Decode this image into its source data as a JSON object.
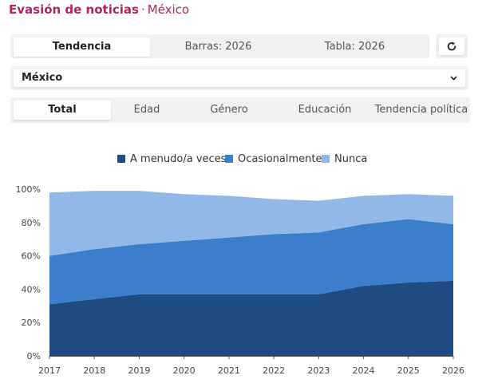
{
  "header": {
    "title": "Evasión de noticias",
    "separator": "·",
    "country": "México"
  },
  "view_tabs": [
    {
      "label": "Tendencia",
      "active": true
    },
    {
      "label": "Barras: 2026",
      "active": false
    },
    {
      "label": "Tabla: 2026",
      "active": false
    }
  ],
  "reset_icon": "reset-icon",
  "country_select": {
    "value": "México",
    "icon": "chevron-down-icon"
  },
  "filter_tabs": [
    {
      "label": "Total",
      "active": true
    },
    {
      "label": "Edad",
      "active": false
    },
    {
      "label": "Género",
      "active": false
    },
    {
      "label": "Educación",
      "active": false
    },
    {
      "label": "Tendencia política",
      "active": false
    }
  ],
  "colors": {
    "accent": "#b0245f",
    "series_dark": "#1e4b82",
    "series_mid": "#3b7fcc",
    "series_light": "#92b8e8"
  },
  "chart_data": {
    "type": "area",
    "stacked": true,
    "title": "",
    "xlabel": "",
    "ylabel": "",
    "x": [
      "2017",
      "2018",
      "2019",
      "2020",
      "2021",
      "2022",
      "2023",
      "2024",
      "2025",
      "2026"
    ],
    "ylim": [
      0,
      100
    ],
    "y_ticks": [
      "0%",
      "20%",
      "40%",
      "60%",
      "80%",
      "100%"
    ],
    "legend_position": "top-center",
    "grid": false,
    "series": [
      {
        "name": "A menudo/a veces",
        "color": "#1e4b82",
        "values": [
          31,
          34,
          37,
          37,
          37,
          37,
          37,
          42,
          44,
          45
        ]
      },
      {
        "name": "Ocasionalmente",
        "color": "#3b7fcc",
        "values": [
          29,
          30,
          30,
          32,
          34,
          36,
          37,
          37,
          38,
          34
        ]
      },
      {
        "name": "Nunca",
        "color": "#92b8e8",
        "values": [
          38,
          35,
          32,
          28,
          25,
          21,
          19,
          17,
          15,
          17
        ]
      }
    ]
  }
}
